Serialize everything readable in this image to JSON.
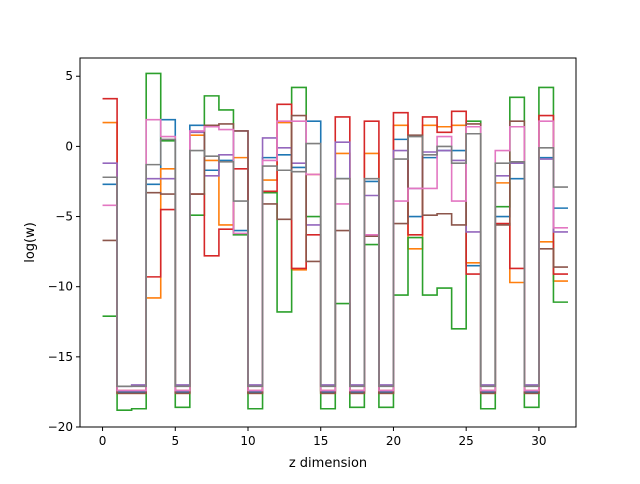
{
  "chart_data": {
    "type": "line",
    "style": "step",
    "title": "",
    "xlabel": "z dimension",
    "ylabel": "log(w)",
    "xlim": [
      -1.55,
      32.55
    ],
    "ylim": [
      -20,
      6.3
    ],
    "xticks": [
      0,
      5,
      10,
      15,
      20,
      25,
      30
    ],
    "yticks": [
      -20,
      -15,
      -10,
      -5,
      0,
      5
    ],
    "xtick_labels": [
      "0",
      "5",
      "10",
      "15",
      "20",
      "25",
      "30"
    ],
    "ytick_labels": [
      "−20",
      "−15",
      "−10",
      "−5",
      "0",
      "5"
    ],
    "grid": false,
    "legend": "none",
    "series": [
      {
        "color": "#1f77b4",
        "values": [
          -2.7,
          -17.5,
          -17.5,
          -2.7,
          1.9,
          -17.5,
          1.5,
          -1.7,
          -1.0,
          -6.0,
          -17.5,
          -0.8,
          -0.6,
          -1.5,
          1.8,
          -17.5,
          -2.3,
          -17.5,
          -2.5,
          -17.5,
          0.5,
          -5.0,
          -0.8,
          -0.3,
          -0.3,
          -8.5,
          -17.5,
          -5.0,
          -2.3,
          -17.5,
          -0.8,
          -4.4
        ]
      },
      {
        "color": "#ff7f0e",
        "values": [
          1.7,
          -17.6,
          -17.6,
          -10.8,
          -1.6,
          -17.6,
          0.8,
          -1.0,
          -5.6,
          -0.8,
          -17.6,
          -2.4,
          1.7,
          -8.8,
          -2.0,
          -17.6,
          -0.5,
          -17.6,
          -0.5,
          -17.6,
          1.5,
          -7.3,
          1.5,
          1.4,
          1.5,
          -8.3,
          -17.6,
          -2.6,
          -9.7,
          -17.6,
          -6.8,
          -9.6
        ]
      },
      {
        "color": "#2ca02c",
        "values": [
          -12.1,
          -18.8,
          -18.7,
          5.2,
          0.4,
          -18.6,
          -4.9,
          3.6,
          2.6,
          -6.3,
          -18.7,
          -3.3,
          -11.8,
          4.2,
          -5.0,
          -18.7,
          -11.2,
          -18.6,
          -7.0,
          -18.6,
          -10.6,
          -6.5,
          -10.6,
          -10.1,
          -13.0,
          1.8,
          -18.7,
          -4.3,
          3.5,
          -18.6,
          4.2,
          -11.1
        ]
      },
      {
        "color": "#d62728",
        "values": [
          3.4,
          -17.4,
          -17.4,
          -9.3,
          -4.5,
          -17.4,
          -3.4,
          -7.8,
          -5.9,
          -1.6,
          -17.4,
          -3.2,
          3.0,
          -8.7,
          -6.3,
          -17.4,
          2.1,
          -17.4,
          1.8,
          -17.4,
          2.4,
          -6.3,
          2.1,
          1.0,
          2.5,
          -9.1,
          -17.4,
          -5.5,
          -8.7,
          -17.4,
          2.2,
          -9.1
        ]
      },
      {
        "color": "#9467bd",
        "values": [
          -1.2,
          -17.1,
          -17.0,
          -2.3,
          -2.3,
          -17.0,
          1.0,
          -2.1,
          -0.6,
          1.1,
          -17.0,
          0.6,
          -0.1,
          -1.2,
          -5.6,
          -17.0,
          0.3,
          -17.0,
          -3.5,
          -17.0,
          -0.3,
          -3.0,
          -0.4,
          -0.3,
          -1.0,
          -6.1,
          -17.0,
          -2.1,
          -1.2,
          -17.0,
          -0.9,
          -6.1
        ]
      },
      {
        "color": "#8c564b",
        "values": [
          -6.7,
          -17.6,
          -17.6,
          -3.3,
          -3.4,
          -17.6,
          -3.4,
          1.5,
          1.6,
          1.1,
          -17.6,
          -4.1,
          -5.2,
          2.2,
          -8.2,
          -17.6,
          -6.0,
          -17.6,
          -6.4,
          -17.6,
          -5.5,
          0.8,
          -4.9,
          -4.8,
          -5.6,
          1.6,
          -17.6,
          -5.6,
          1.8,
          -17.6,
          -7.3,
          -8.6
        ]
      },
      {
        "color": "#e377c2",
        "values": [
          -4.2,
          -17.4,
          -17.4,
          1.9,
          0.7,
          -17.4,
          1.1,
          1.4,
          1.2,
          -6.2,
          -17.4,
          -1.0,
          1.8,
          1.8,
          -2.0,
          -17.4,
          -4.1,
          -17.4,
          -6.3,
          -17.4,
          -3.9,
          -3.0,
          -3.0,
          0.7,
          -3.9,
          1.4,
          -17.4,
          -0.3,
          1.4,
          -17.4,
          1.8,
          -5.8
        ]
      },
      {
        "color": "#7f7f7f",
        "values": [
          -2.2,
          -17.1,
          -17.1,
          -1.3,
          0.5,
          -17.1,
          -0.3,
          -0.7,
          -1.1,
          -3.9,
          -17.1,
          -1.4,
          -1.7,
          -1.8,
          0.2,
          -17.1,
          -2.3,
          -17.1,
          -2.3,
          -17.1,
          -0.9,
          0.7,
          -0.6,
          0.0,
          -1.2,
          0.9,
          -17.1,
          -1.2,
          -1.1,
          -17.1,
          -0.1,
          -2.9
        ]
      }
    ]
  }
}
